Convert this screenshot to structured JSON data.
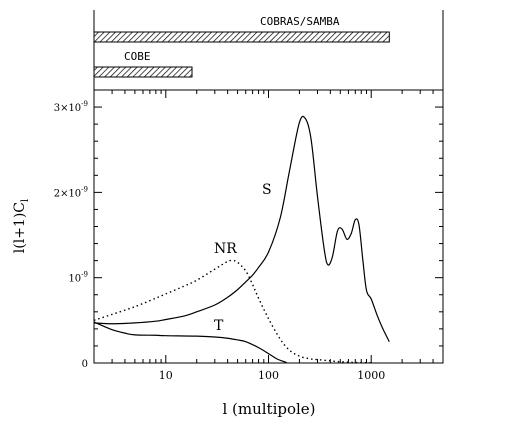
{
  "chart_data": [
    {
      "type": "bar",
      "panel": "top",
      "xscale": "log",
      "bars": [
        {
          "label": "COBRAS/SAMBA",
          "range": [
            2,
            1500
          ]
        },
        {
          "label": "COBE",
          "range": [
            2,
            18
          ]
        }
      ]
    },
    {
      "type": "line",
      "panel": "bottom",
      "xscale": "log",
      "xlim": [
        2,
        5000
      ],
      "ylim": [
        0,
        3.2e-09
      ],
      "xlabel": "l (multipole)",
      "ylabel": "l(l+1)C",
      "ylabel_subscript": "l",
      "x_ticks": [
        {
          "value": 10,
          "label": "10"
        },
        {
          "value": 100,
          "label": "100"
        },
        {
          "value": 1000,
          "label": "1000"
        }
      ],
      "y_ticks": [
        {
          "value": 0,
          "label": "0",
          "exp": ""
        },
        {
          "value": 1e-09,
          "label": "10",
          "exp": "-9"
        },
        {
          "value": 2e-09,
          "label": "2×10",
          "exp": "-9"
        },
        {
          "value": 3e-09,
          "label": "3×10",
          "exp": "-9"
        }
      ],
      "series": [
        {
          "name": "S",
          "style": "solid",
          "x": [
            2,
            3,
            5,
            8,
            10,
            15,
            20,
            30,
            40,
            50,
            60,
            70,
            80,
            100,
            130,
            160,
            200,
            230,
            260,
            300,
            350,
            380,
            420,
            470,
            520,
            580,
            640,
            700,
            760,
            830,
            900,
            1000,
            1150,
            1300,
            1500
          ],
          "y": [
            4.7e-10,
            4.6e-10,
            4.7e-10,
            4.9e-10,
            5.1e-10,
            5.5e-10,
            6e-10,
            6.8e-10,
            7.7e-10,
            8.6e-10,
            9.5e-10,
            1.03e-09,
            1.12e-09,
            1.3e-09,
            1.7e-09,
            2.25e-09,
            2.82e-09,
            2.86e-09,
            2.62e-09,
            1.95e-09,
            1.32e-09,
            1.15e-09,
            1.25e-09,
            1.55e-09,
            1.57e-09,
            1.45e-09,
            1.52e-09,
            1.68e-09,
            1.62e-09,
            1.2e-09,
            8.5e-10,
            7.5e-10,
            5.5e-10,
            4e-10,
            2.5e-10
          ]
        },
        {
          "name": "T",
          "style": "solid",
          "x": [
            2,
            3,
            4,
            5,
            8,
            10,
            20,
            30,
            40,
            50,
            60,
            80,
            100,
            120,
            150
          ],
          "y": [
            4.8e-10,
            3.9e-10,
            3.5e-10,
            3.3e-10,
            3.25e-10,
            3.2e-10,
            3.15e-10,
            3.05e-10,
            2.9e-10,
            2.7e-10,
            2.5e-10,
            1.8e-10,
            1.1e-10,
            5e-11,
            5e-12
          ]
        },
        {
          "name": "NR",
          "style": "dotted",
          "x": [
            2,
            3,
            5,
            8,
            10,
            15,
            20,
            30,
            40,
            45,
            50,
            60,
            70,
            80,
            100,
            130,
            160,
            200,
            250,
            300,
            400,
            500,
            700,
            1000
          ],
          "y": [
            5e-10,
            5.7e-10,
            6.6e-10,
            7.6e-10,
            8.1e-10,
            9e-10,
            9.7e-10,
            1.1e-09,
            1.19e-09,
            1.2e-09,
            1.18e-09,
            1.08e-09,
            9.2e-10,
            7.6e-10,
            5.2e-10,
            2.8e-10,
            1.5e-10,
            8e-11,
            5e-11,
            4e-11,
            2.5e-11,
            1.5e-11,
            6e-12,
            2e-12
          ]
        }
      ],
      "annotations": [
        "S",
        "NR",
        "T"
      ]
    }
  ]
}
